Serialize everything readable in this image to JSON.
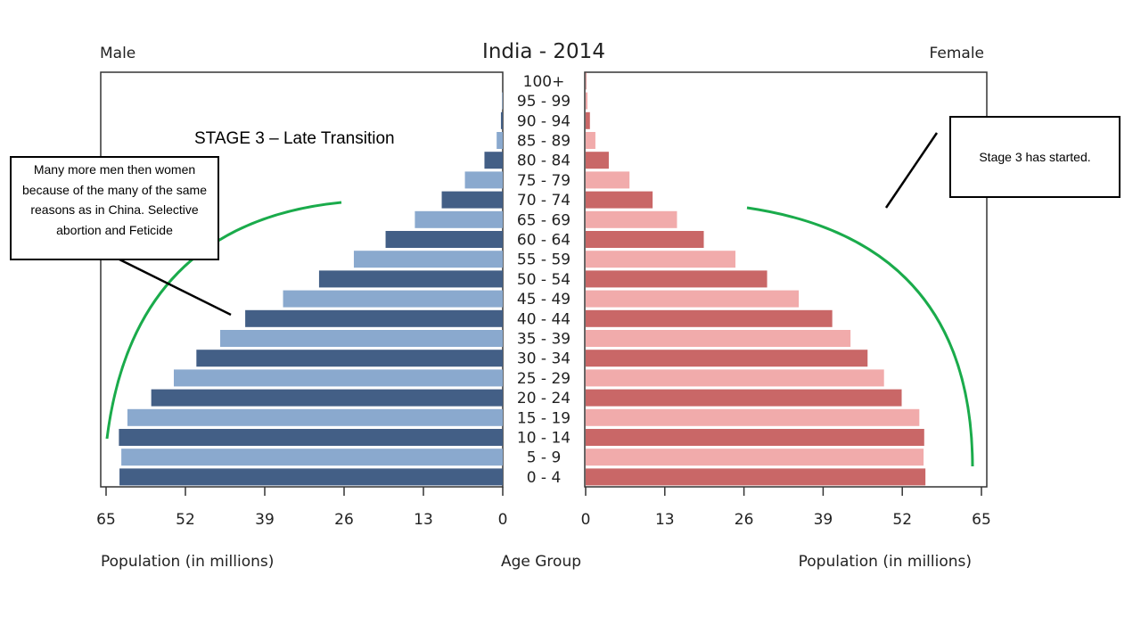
{
  "chart_data": {
    "type": "bar",
    "title": "India - 2014",
    "left_label": "Male",
    "right_label": "Female",
    "xlabel_left": "Population (in millions)",
    "xlabel_right": "Population (in millions)",
    "center_label": "Age Group",
    "xlim": [
      0,
      65
    ],
    "ticks_left": [
      "65",
      "52",
      "39",
      "26",
      "13",
      "0"
    ],
    "ticks_right": [
      "0",
      "13",
      "26",
      "39",
      "52",
      "65"
    ],
    "categories": [
      "0 - 4",
      "5 - 9",
      "10 - 14",
      "15 - 19",
      "20 - 24",
      "25 - 29",
      "30 - 34",
      "35 - 39",
      "40 - 44",
      "45 - 49",
      "50 - 54",
      "55 - 59",
      "60 - 64",
      "65 - 69",
      "70 - 74",
      "75 - 79",
      "80 - 84",
      "85 - 89",
      "90 - 94",
      "95 - 99",
      "100+"
    ],
    "series": [
      {
        "name": "Male",
        "values": [
          62.8,
          62.5,
          62.9,
          61.5,
          57.6,
          53.9,
          50.2,
          46.3,
          42.2,
          36.0,
          30.1,
          24.4,
          19.2,
          14.4,
          10.0,
          6.2,
          3.0,
          1.0,
          0.3,
          0.1,
          0.0
        ]
      },
      {
        "name": "Female",
        "values": [
          55.8,
          55.5,
          55.6,
          54.8,
          51.9,
          49.0,
          46.3,
          43.5,
          40.5,
          35.0,
          29.8,
          24.6,
          19.4,
          15.0,
          11.0,
          7.2,
          3.8,
          1.6,
          0.7,
          0.3,
          0.1
        ]
      }
    ],
    "colors": {
      "male_dark": "#435f86",
      "male_light": "#8aa9ce",
      "female_dark": "#c96767",
      "female_light": "#f1abab",
      "arc": "#1aab4b"
    },
    "grid": false
  },
  "annotations": {
    "stage_title": "STAGE 3 – Late Transition",
    "left_callout": "Many more men then women because of the many of the same reasons as in China. Selective abortion and Feticide",
    "right_callout": "Stage 3 has started."
  }
}
